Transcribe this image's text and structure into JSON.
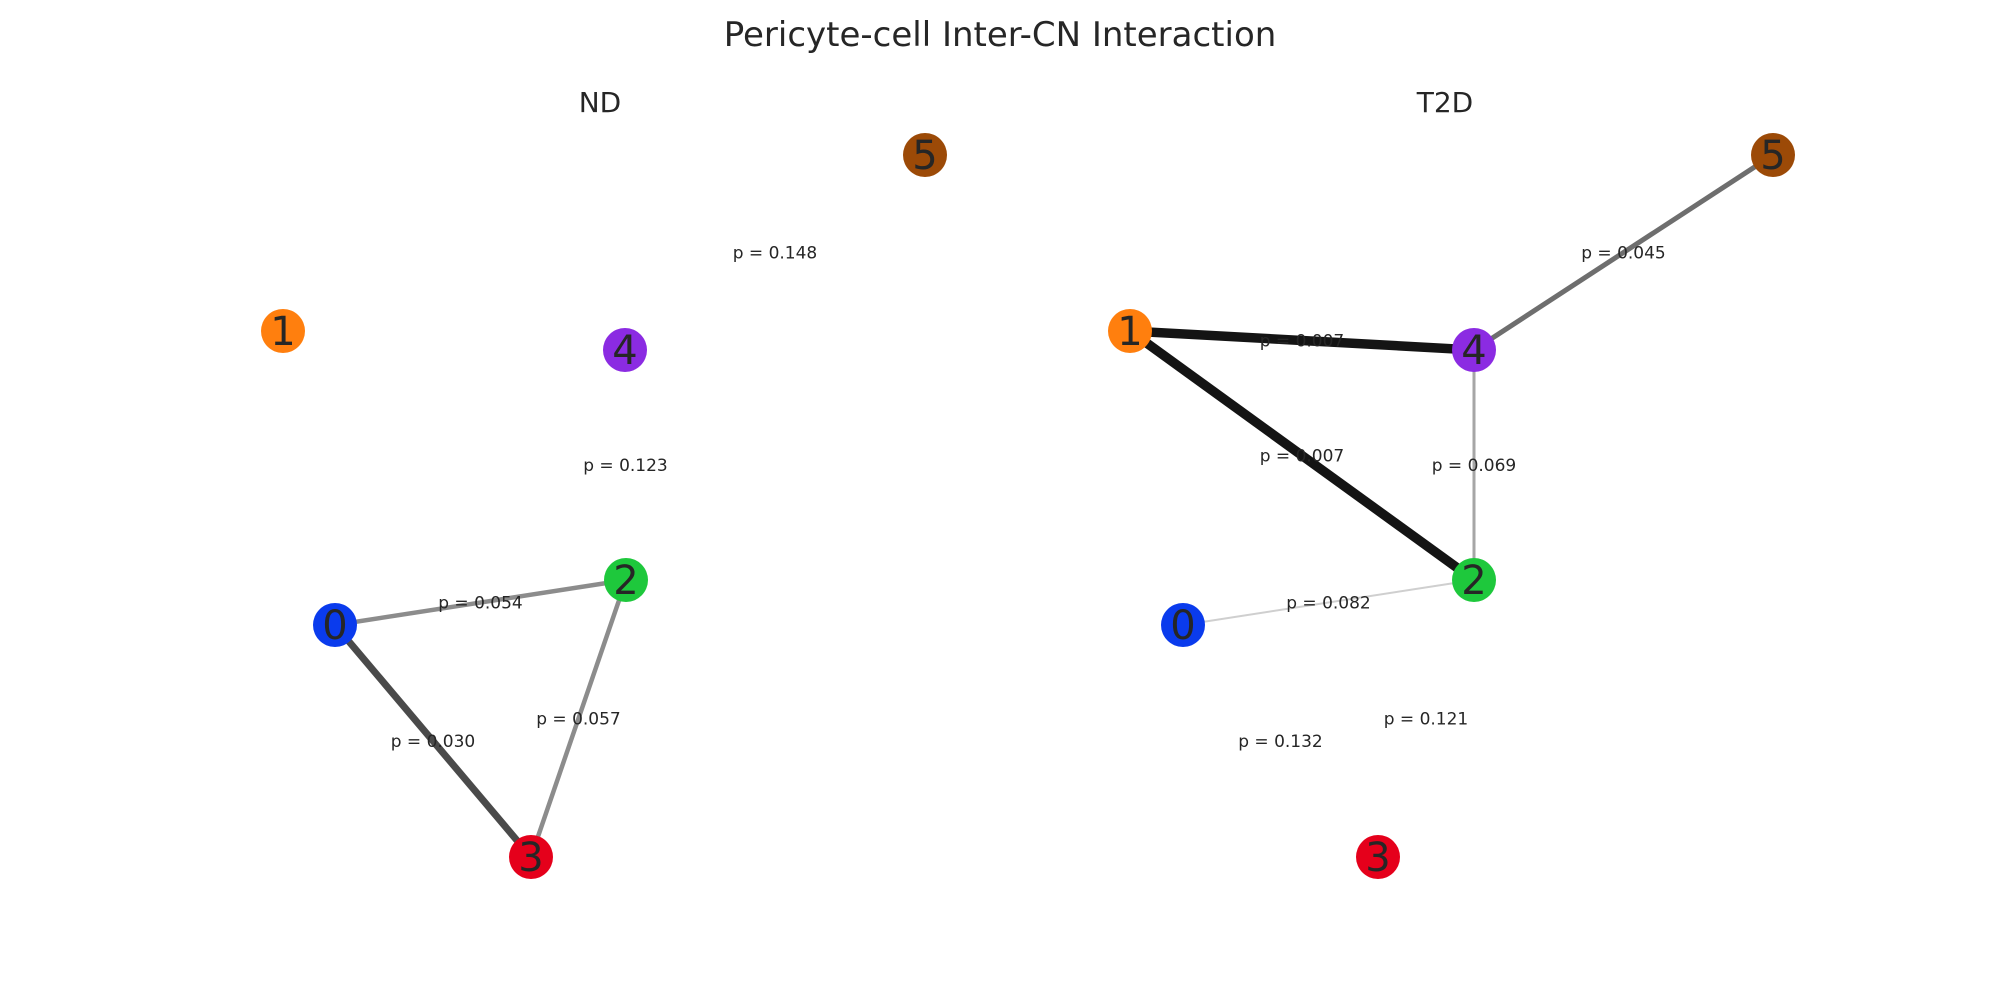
{
  "figure": {
    "title": "Pericyte-cell Inter-CN Interaction"
  },
  "node_colors": {
    "0": "#0a3bed",
    "1": "#ff7f0e",
    "2": "#1ec83c",
    "3": "#e5001b",
    "4": "#8b2be2",
    "5": "#9c4a07"
  },
  "panels": [
    {
      "title": "ND",
      "nodes": [
        "0",
        "1",
        "2",
        "3",
        "4",
        "5"
      ],
      "edges": [
        {
          "source": "0",
          "target": "2",
          "label": "p = 0.054",
          "p": 0.054,
          "visible": true
        },
        {
          "source": "0",
          "target": "3",
          "label": "p = 0.030",
          "p": 0.03,
          "visible": true
        },
        {
          "source": "2",
          "target": "3",
          "label": "p = 0.057",
          "p": 0.057,
          "visible": true
        },
        {
          "source": "2",
          "target": "4",
          "label": "p = 0.123",
          "p": 0.123,
          "visible": false
        },
        {
          "source": "4",
          "target": "5",
          "label": "p = 0.148",
          "p": 0.148,
          "visible": false
        }
      ]
    },
    {
      "title": "T2D",
      "nodes": [
        "0",
        "1",
        "2",
        "3",
        "4",
        "5"
      ],
      "edges": [
        {
          "source": "1",
          "target": "4",
          "label": "p = 0.007",
          "p": 0.007,
          "visible": true
        },
        {
          "source": "1",
          "target": "2",
          "label": "p = 0.007",
          "p": 0.007,
          "visible": true
        },
        {
          "source": "4",
          "target": "5",
          "label": "p = 0.045",
          "p": 0.045,
          "visible": true
        },
        {
          "source": "2",
          "target": "4",
          "label": "p = 0.069",
          "p": 0.069,
          "visible": true
        },
        {
          "source": "0",
          "target": "2",
          "label": "p = 0.082",
          "p": 0.082,
          "visible": true
        },
        {
          "source": "2",
          "target": "3",
          "label": "p = 0.121",
          "p": 0.121,
          "visible": false
        },
        {
          "source": "0",
          "target": "3",
          "label": "p = 0.132",
          "p": 0.132,
          "visible": false
        }
      ]
    }
  ]
}
